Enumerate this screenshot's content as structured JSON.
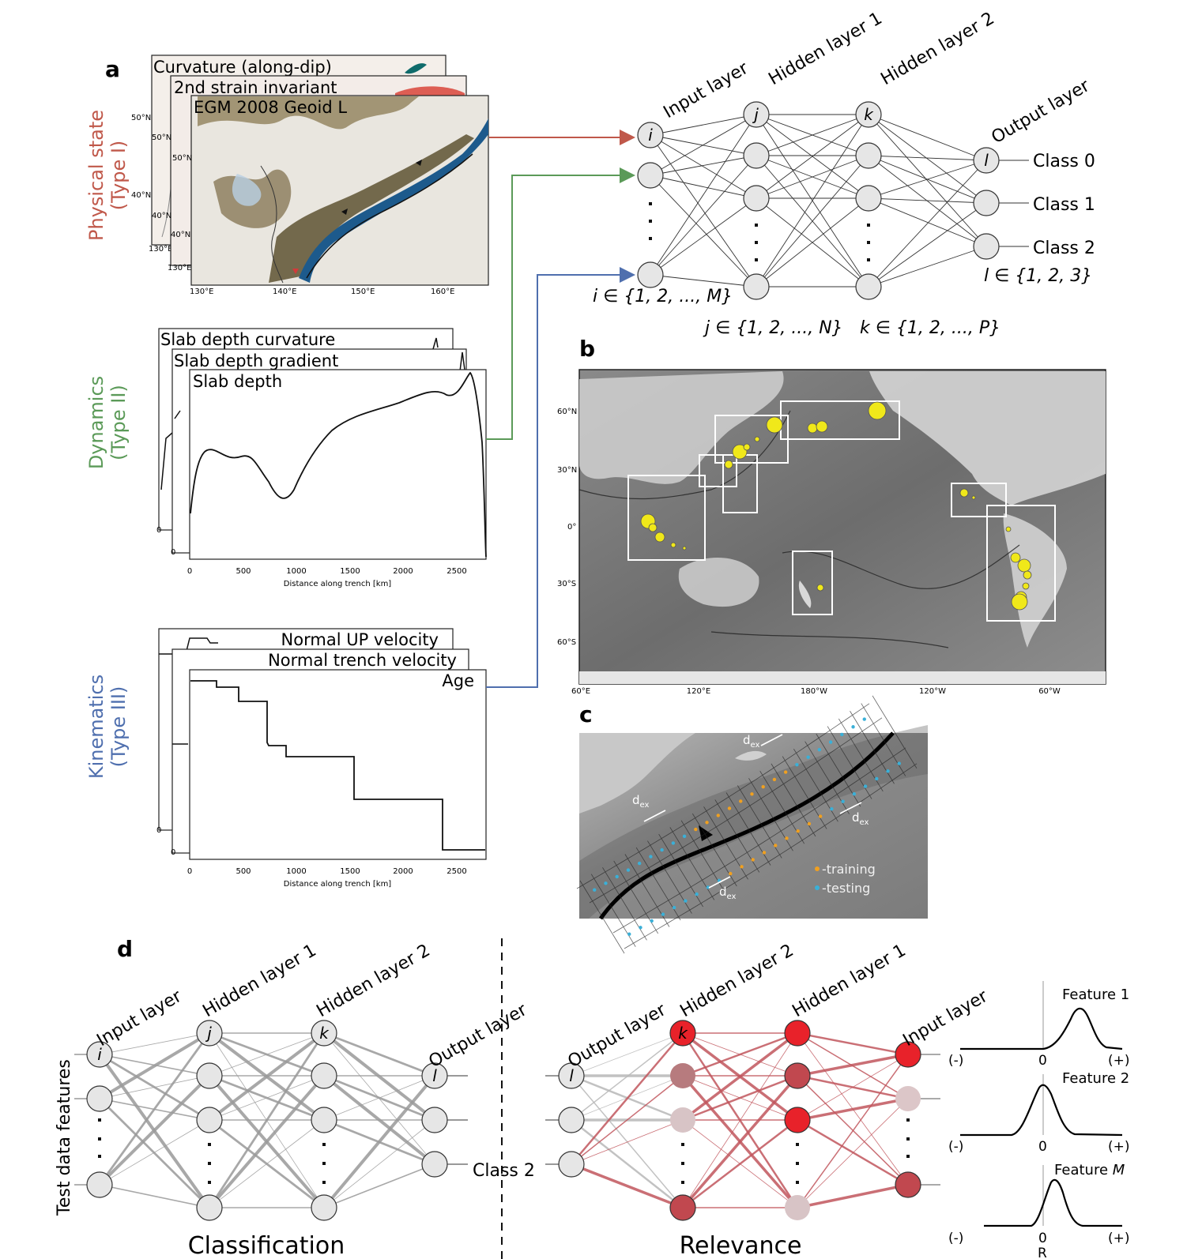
{
  "panels": {
    "a": "a",
    "b": "b",
    "c": "c",
    "d": "d"
  },
  "categories": {
    "type1": [
      "Physical state",
      "(Type I)"
    ],
    "type2": [
      "Dynamics",
      "(Type II)"
    ],
    "type3": [
      "Kinematics",
      "(Type III)"
    ]
  },
  "colors": {
    "type1": "#c0584a",
    "type2": "#5b9a58",
    "type3": "#4f6fae",
    "relevance": "#e8222a",
    "marker": "#f0e81a"
  },
  "maps_a": {
    "titles": [
      "Curvature (along-dip)",
      "2nd strain invariant",
      "EGM 2008 Geoid L"
    ],
    "lat_labels": [
      "50°N",
      "40°N"
    ],
    "lon_labels": [
      "130°E",
      "140°E",
      "150°E",
      "160°E"
    ],
    "back_lon": "130°E"
  },
  "dynamics_plots": {
    "titles": [
      "Slab depth curvature",
      "Slab depth gradient",
      "Slab depth"
    ],
    "xlabel": "Distance along trench [km]",
    "xticks": [
      "0",
      "500",
      "1000",
      "1500",
      "2000",
      "2500"
    ],
    "back_zero": "0"
  },
  "kinematics_plots": {
    "titles": [
      "Normal UP velocity",
      "Normal trench velocity",
      "Age"
    ],
    "xlabel": "Distance along trench [km]",
    "xticks": [
      "0",
      "500",
      "1000",
      "1500",
      "2000",
      "2500"
    ],
    "back_zero": "0"
  },
  "network_a": {
    "layers": [
      "Input layer",
      "Hidden layer 1",
      "Hidden layer 2",
      "Output layer"
    ],
    "node_labels": [
      "i",
      "j",
      "k",
      "l"
    ],
    "classes": [
      "Class 0",
      "Class 1",
      "Class 2"
    ],
    "index_sets": [
      "i ∈ {1, 2, ..., M}",
      "j ∈ {1, 2, ..., N}",
      "k ∈ {1, 2, ..., P}",
      "l ∈ {1, 2, 3}"
    ]
  },
  "world_map_b": {
    "lat_labels": [
      "60°N",
      "30°N",
      "0°",
      "30°S",
      "60°S"
    ],
    "lon_labels": [
      "60°E",
      "120°E",
      "180°W",
      "120°W",
      "60°W"
    ]
  },
  "trench_c": {
    "dex_label": "d",
    "dex_sub": "ex",
    "legend": [
      "-training",
      "-testing"
    ],
    "legend_colors": [
      "#f0a020",
      "#3ab0d8"
    ]
  },
  "panel_d": {
    "ylabel": "Test data features",
    "classification": {
      "title": "Classification",
      "layers": [
        "Input layer",
        "Hidden layer 1",
        "Hidden layer 2",
        "Output layer"
      ],
      "node_labels": [
        "i",
        "j",
        "k",
        "l"
      ],
      "output_class": "Class 2"
    },
    "relevance": {
      "title": "Relevance",
      "layers": [
        "Output layer",
        "Hidden layer 2",
        "Hidden layer 1",
        "Input layer"
      ],
      "node_labels": [
        "l",
        "k"
      ]
    },
    "distributions": [
      {
        "name": "Feature 1",
        "italic": ""
      },
      {
        "name": "Feature ",
        "italic": "M"
      }
    ],
    "feature2": "Feature 2",
    "axis": {
      "neg": "(-)",
      "zero": "0",
      "pos": "(+)",
      "xlabel": "R"
    }
  }
}
